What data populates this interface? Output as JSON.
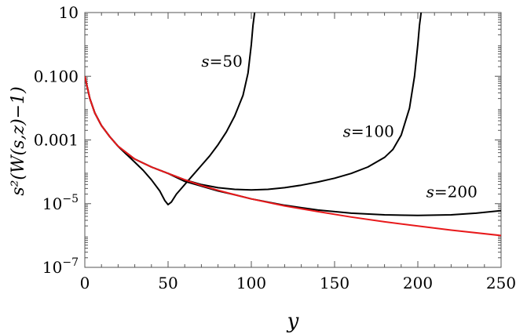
{
  "chart_data": {
    "type": "line",
    "title": "",
    "xlabel": "y",
    "ylabel": "s²(W(s,z)−1)",
    "xlim": [
      0,
      250
    ],
    "ylim_log10": [
      -7,
      1
    ],
    "yscale": "log",
    "grid": false,
    "x_ticks": [
      "0",
      "50",
      "100",
      "150",
      "200",
      "250"
    ],
    "y_ticks": [
      {
        "base": "10",
        "exp": "−7",
        "log10": -7
      },
      {
        "base": "10",
        "exp": "−5",
        "log10": -5
      },
      {
        "base": "0.001",
        "exp": "",
        "log10": -3
      },
      {
        "base": "0.100",
        "exp": "",
        "log10": -1
      },
      {
        "base": "10",
        "exp": "",
        "log10": 1
      }
    ],
    "series": [
      {
        "label_var": "s",
        "label_rest": "=50",
        "color": "#000000",
        "label_at": [
          70,
          -0.7
        ],
        "points": [
          [
            0,
            -1
          ],
          [
            3,
            -1.7
          ],
          [
            6,
            -2.15
          ],
          [
            10,
            -2.55
          ],
          [
            15,
            -2.9
          ],
          [
            20,
            -3.2
          ],
          [
            25,
            -3.45
          ],
          [
            30,
            -3.7
          ],
          [
            35,
            -3.95
          ],
          [
            40,
            -4.25
          ],
          [
            45,
            -4.6
          ],
          [
            48,
            -4.9
          ],
          [
            50,
            -5.03
          ],
          [
            52,
            -4.95
          ],
          [
            55,
            -4.7
          ],
          [
            60,
            -4.4
          ],
          [
            65,
            -4.1
          ],
          [
            70,
            -3.8
          ],
          [
            75,
            -3.5
          ],
          [
            80,
            -3.15
          ],
          [
            85,
            -2.75
          ],
          [
            90,
            -2.25
          ],
          [
            95,
            -1.6
          ],
          [
            98,
            -0.9
          ],
          [
            100,
            0.0
          ],
          [
            101,
            0.6
          ],
          [
            102,
            1.0
          ]
        ]
      },
      {
        "label_var": "s",
        "label_rest": "=100",
        "color": "#000000",
        "label_at": [
          155,
          -2.9
        ],
        "points": [
          [
            0,
            -1
          ],
          [
            3,
            -1.7
          ],
          [
            6,
            -2.15
          ],
          [
            10,
            -2.55
          ],
          [
            15,
            -2.9
          ],
          [
            20,
            -3.2
          ],
          [
            25,
            -3.4
          ],
          [
            30,
            -3.6
          ],
          [
            40,
            -3.85
          ],
          [
            50,
            -4.05
          ],
          [
            60,
            -4.25
          ],
          [
            70,
            -4.4
          ],
          [
            80,
            -4.5
          ],
          [
            90,
            -4.55
          ],
          [
            100,
            -4.57
          ],
          [
            110,
            -4.55
          ],
          [
            120,
            -4.5
          ],
          [
            130,
            -4.42
          ],
          [
            140,
            -4.32
          ],
          [
            150,
            -4.2
          ],
          [
            160,
            -4.05
          ],
          [
            170,
            -3.85
          ],
          [
            180,
            -3.55
          ],
          [
            185,
            -3.3
          ],
          [
            190,
            -2.85
          ],
          [
            195,
            -2.0
          ],
          [
            198,
            -1.0
          ],
          [
            200,
            0.0
          ],
          [
            201,
            0.6
          ],
          [
            202,
            1.0
          ]
        ]
      },
      {
        "label_var": "s",
        "label_rest": "=200",
        "color": "#000000",
        "label_at": [
          205,
          -4.8
        ],
        "points": [
          [
            0,
            -1
          ],
          [
            3,
            -1.7
          ],
          [
            6,
            -2.15
          ],
          [
            10,
            -2.55
          ],
          [
            15,
            -2.9
          ],
          [
            20,
            -3.2
          ],
          [
            25,
            -3.45
          ],
          [
            30,
            -3.6
          ],
          [
            40,
            -3.85
          ],
          [
            50,
            -4.05
          ],
          [
            60,
            -4.3
          ],
          [
            70,
            -4.45
          ],
          [
            80,
            -4.6
          ],
          [
            90,
            -4.72
          ],
          [
            100,
            -4.85
          ],
          [
            120,
            -5.05
          ],
          [
            140,
            -5.2
          ],
          [
            160,
            -5.3
          ],
          [
            180,
            -5.35
          ],
          [
            200,
            -5.37
          ],
          [
            220,
            -5.35
          ],
          [
            235,
            -5.3
          ],
          [
            250,
            -5.22
          ]
        ]
      },
      {
        "label_var": "",
        "label_rest": "",
        "color": "#e8191b",
        "label_at": null,
        "points": [
          [
            0,
            -1
          ],
          [
            3,
            -1.7
          ],
          [
            6,
            -2.15
          ],
          [
            10,
            -2.55
          ],
          [
            15,
            -2.9
          ],
          [
            20,
            -3.2
          ],
          [
            25,
            -3.4
          ],
          [
            30,
            -3.6
          ],
          [
            40,
            -3.85
          ],
          [
            50,
            -4.05
          ],
          [
            60,
            -4.25
          ],
          [
            70,
            -4.43
          ],
          [
            80,
            -4.58
          ],
          [
            90,
            -4.72
          ],
          [
            100,
            -4.85
          ],
          [
            120,
            -5.07
          ],
          [
            140,
            -5.25
          ],
          [
            160,
            -5.42
          ],
          [
            180,
            -5.57
          ],
          [
            200,
            -5.7
          ],
          [
            220,
            -5.83
          ],
          [
            250,
            -6.0
          ]
        ]
      }
    ]
  }
}
